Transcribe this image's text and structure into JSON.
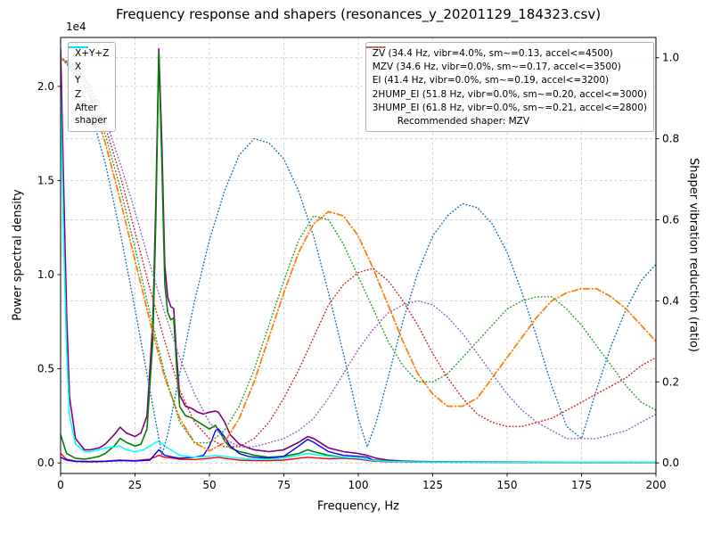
{
  "chart_data": {
    "type": "line",
    "title": "Frequency response and shapers (resonances_y_20201129_184323.csv)",
    "xlabel": "Frequency, Hz",
    "ylabel_left": "Power spectral density",
    "ylabel_right": "Shaper vibration reduction (ratio)",
    "left_offset_label": "1e4",
    "left_scale": 10000,
    "xlim": [
      0,
      200
    ],
    "left_lim": [
      -560,
      22600
    ],
    "right_lim": [
      -0.026,
      1.05
    ],
    "x_ticks": [
      0,
      25,
      50,
      75,
      100,
      125,
      150,
      175,
      200
    ],
    "left_ticks": [
      0,
      5000,
      10000,
      15000,
      20000
    ],
    "right_ticks": [
      0,
      0.2,
      0.4,
      0.6,
      0.8,
      1.0
    ],
    "grid": true,
    "legend_note": "Recommended shaper: MZV",
    "psd_series": [
      {
        "name": "x-y-z",
        "label": "X+Y+Z",
        "color": "#800080",
        "style": "solid",
        "width": 1.6,
        "x": [
          0,
          1,
          2,
          3,
          5,
          8,
          10,
          13,
          15,
          18,
          20,
          22,
          25,
          27,
          29,
          31,
          32,
          33,
          34,
          35,
          36,
          37,
          38,
          39,
          40,
          42,
          44,
          46,
          48,
          50,
          52,
          53,
          55,
          57,
          60,
          63,
          65,
          70,
          75,
          80,
          83,
          85,
          88,
          90,
          95,
          100,
          103,
          106,
          110,
          115,
          120,
          130,
          150,
          175,
          200
        ],
        "y": [
          22000,
          15000,
          8000,
          3500,
          1300,
          700,
          700,
          800,
          1000,
          1500,
          1900,
          1600,
          1400,
          1600,
          2500,
          7500,
          14000,
          22000,
          17000,
          10500,
          8800,
          8300,
          8200,
          5600,
          3600,
          3000,
          2900,
          2700,
          2600,
          2700,
          2750,
          2700,
          2200,
          1500,
          1000,
          800,
          700,
          600,
          700,
          1100,
          1400,
          1300,
          1000,
          800,
          600,
          500,
          400,
          250,
          150,
          100,
          80,
          60,
          50,
          40,
          40
        ]
      },
      {
        "name": "x",
        "label": "X",
        "color": "#ff0000",
        "style": "solid",
        "width": 1.4,
        "x": [
          0,
          2,
          5,
          10,
          15,
          20,
          25,
          30,
          33,
          35,
          38,
          40,
          45,
          50,
          53,
          55,
          60,
          65,
          70,
          75,
          80,
          83,
          85,
          90,
          95,
          100,
          105,
          110,
          120,
          150,
          200
        ],
        "y": [
          500,
          200,
          100,
          80,
          100,
          150,
          120,
          200,
          400,
          300,
          250,
          200,
          180,
          250,
          300,
          250,
          150,
          120,
          120,
          150,
          250,
          300,
          280,
          220,
          250,
          200,
          100,
          60,
          40,
          30,
          30
        ]
      },
      {
        "name": "y",
        "label": "Y",
        "color": "#008000",
        "style": "solid",
        "width": 1.6,
        "x": [
          0,
          2,
          5,
          8,
          10,
          13,
          15,
          18,
          20,
          22,
          25,
          27,
          29,
          31,
          32,
          33,
          34,
          35,
          36,
          37,
          38,
          39,
          40,
          42,
          44,
          46,
          48,
          50,
          52,
          54,
          55,
          57,
          60,
          63,
          65,
          70,
          75,
          80,
          83,
          85,
          90,
          95,
          100,
          105,
          110,
          120,
          130,
          150,
          175,
          200
        ],
        "y": [
          1500,
          500,
          250,
          200,
          250,
          350,
          500,
          900,
          1300,
          1100,
          900,
          1000,
          1800,
          6500,
          13000,
          21800,
          16000,
          9500,
          8000,
          7600,
          7700,
          5000,
          3000,
          2500,
          2400,
          2200,
          2000,
          1800,
          2000,
          1500,
          1200,
          800,
          600,
          500,
          400,
          300,
          350,
          500,
          700,
          600,
          400,
          300,
          250,
          150,
          100,
          60,
          50,
          40,
          30,
          30
        ]
      },
      {
        "name": "z",
        "label": "Z",
        "color": "#0000ff",
        "style": "solid",
        "width": 1.4,
        "x": [
          0,
          2,
          5,
          10,
          15,
          20,
          25,
          30,
          33,
          35,
          38,
          40,
          45,
          48,
          50,
          52,
          53,
          55,
          57,
          60,
          63,
          65,
          70,
          75,
          80,
          83,
          85,
          88,
          90,
          95,
          100,
          103,
          105,
          110,
          120,
          150,
          200
        ],
        "y": [
          300,
          150,
          80,
          60,
          80,
          120,
          100,
          150,
          700,
          400,
          300,
          250,
          300,
          400,
          900,
          1700,
          1800,
          1400,
          900,
          500,
          350,
          300,
          250,
          350,
          900,
          1250,
          1100,
          800,
          600,
          400,
          350,
          300,
          150,
          80,
          50,
          40,
          40
        ]
      },
      {
        "name": "after-shaper",
        "label": "After\nshaper",
        "color": "#00ffff",
        "style": "solid",
        "width": 1.5,
        "x": [
          0,
          1,
          2,
          3,
          5,
          8,
          10,
          13,
          15,
          18,
          20,
          22,
          25,
          28,
          30,
          32,
          33,
          35,
          38,
          40,
          45,
          50,
          52,
          55,
          60,
          65,
          70,
          75,
          80,
          83,
          85,
          90,
          95,
          100,
          105,
          110,
          120,
          150,
          200
        ],
        "y": [
          19800,
          12000,
          6000,
          2500,
          1000,
          600,
          600,
          700,
          800,
          850,
          900,
          700,
          600,
          700,
          900,
          1100,
          1150,
          900,
          600,
          400,
          300,
          350,
          400,
          350,
          250,
          200,
          200,
          250,
          400,
          500,
          450,
          350,
          300,
          250,
          130,
          80,
          50,
          40,
          40
        ]
      }
    ],
    "shaper_series": [
      {
        "name": "zv",
        "label": "ZV (34.4 Hz, vibr=4.0%, sm~=0.13, accel<=4500)",
        "color": "#1f77b4",
        "style": "dotted",
        "width": 1.5,
        "x": [
          0,
          5,
          10,
          15,
          20,
          25,
          30,
          34,
          36,
          40,
          45,
          50,
          55,
          60,
          65,
          70,
          75,
          80,
          85,
          90,
          95,
          100,
          103,
          106,
          110,
          115,
          120,
          125,
          130,
          135,
          140,
          145,
          150,
          155,
          160,
          165,
          170,
          175,
          180,
          185,
          190,
          195,
          200
        ],
        "y": [
          1.0,
          0.96,
          0.87,
          0.74,
          0.57,
          0.38,
          0.18,
          0.02,
          0.07,
          0.22,
          0.4,
          0.55,
          0.67,
          0.76,
          0.8,
          0.79,
          0.75,
          0.67,
          0.56,
          0.42,
          0.27,
          0.11,
          0.04,
          0.1,
          0.21,
          0.35,
          0.47,
          0.56,
          0.61,
          0.64,
          0.63,
          0.59,
          0.52,
          0.42,
          0.31,
          0.19,
          0.09,
          0.06,
          0.18,
          0.29,
          0.38,
          0.45,
          0.49
        ]
      },
      {
        "name": "mzv",
        "label": "MZV (34.6 Hz, vibr=0.0%, sm~=0.17, accel<=3500)",
        "color": "#ff7f0e",
        "style": "dashdot",
        "width": 1.8,
        "x": [
          0,
          5,
          10,
          15,
          20,
          25,
          30,
          35,
          40,
          45,
          50,
          55,
          60,
          65,
          70,
          75,
          80,
          85,
          90,
          95,
          100,
          105,
          110,
          115,
          120,
          125,
          130,
          135,
          140,
          145,
          150,
          155,
          160,
          165,
          170,
          175,
          180,
          185,
          190,
          195,
          200
        ],
        "y": [
          1.0,
          0.97,
          0.9,
          0.79,
          0.65,
          0.5,
          0.35,
          0.21,
          0.11,
          0.05,
          0.03,
          0.05,
          0.11,
          0.2,
          0.31,
          0.42,
          0.52,
          0.59,
          0.62,
          0.61,
          0.56,
          0.48,
          0.39,
          0.3,
          0.22,
          0.17,
          0.14,
          0.14,
          0.16,
          0.21,
          0.26,
          0.31,
          0.36,
          0.4,
          0.42,
          0.43,
          0.43,
          0.41,
          0.38,
          0.34,
          0.3
        ]
      },
      {
        "name": "ei",
        "label": "EI (41.4 Hz, vibr=0.0%, sm~=0.19, accel<=3200)",
        "color": "#2ca02c",
        "style": "dotted",
        "width": 1.5,
        "x": [
          0,
          5,
          10,
          15,
          20,
          25,
          30,
          35,
          40,
          45,
          50,
          55,
          60,
          65,
          70,
          75,
          80,
          85,
          90,
          95,
          100,
          105,
          110,
          115,
          120,
          125,
          130,
          135,
          140,
          145,
          150,
          155,
          160,
          165,
          170,
          175,
          180,
          185,
          190,
          195,
          200
        ],
        "y": [
          1.0,
          0.97,
          0.91,
          0.81,
          0.68,
          0.53,
          0.37,
          0.22,
          0.1,
          0.05,
          0.05,
          0.08,
          0.14,
          0.23,
          0.34,
          0.45,
          0.55,
          0.61,
          0.6,
          0.54,
          0.46,
          0.38,
          0.3,
          0.24,
          0.2,
          0.2,
          0.22,
          0.26,
          0.3,
          0.34,
          0.38,
          0.4,
          0.41,
          0.41,
          0.38,
          0.34,
          0.29,
          0.24,
          0.19,
          0.15,
          0.13
        ]
      },
      {
        "name": "2hump-ei",
        "label": "2HUMP_EI (51.8 Hz, vibr=0.0%, sm~=0.20, accel<=3000)",
        "color": "#d62728",
        "style": "dotted",
        "width": 1.5,
        "x": [
          0,
          5,
          10,
          15,
          20,
          25,
          30,
          35,
          40,
          45,
          50,
          55,
          60,
          65,
          70,
          75,
          80,
          85,
          90,
          95,
          100,
          105,
          110,
          115,
          120,
          125,
          130,
          135,
          140,
          145,
          150,
          155,
          160,
          165,
          170,
          175,
          180,
          185,
          190,
          195,
          200
        ],
        "y": [
          1.0,
          0.98,
          0.92,
          0.83,
          0.71,
          0.57,
          0.43,
          0.3,
          0.18,
          0.1,
          0.06,
          0.04,
          0.04,
          0.06,
          0.1,
          0.16,
          0.23,
          0.31,
          0.39,
          0.44,
          0.47,
          0.48,
          0.45,
          0.4,
          0.34,
          0.27,
          0.21,
          0.16,
          0.12,
          0.1,
          0.09,
          0.09,
          0.1,
          0.11,
          0.13,
          0.15,
          0.17,
          0.19,
          0.21,
          0.24,
          0.26
        ]
      },
      {
        "name": "3hump-ei",
        "label": "3HUMP_EI (61.8 Hz, vibr=0.0%, sm~=0.21, accel<=2800)",
        "color": "#9467bd",
        "style": "dotted",
        "width": 1.5,
        "x": [
          0,
          5,
          10,
          15,
          20,
          25,
          30,
          35,
          40,
          45,
          50,
          55,
          60,
          65,
          70,
          75,
          80,
          85,
          90,
          95,
          100,
          105,
          110,
          115,
          120,
          125,
          130,
          135,
          140,
          145,
          150,
          155,
          160,
          165,
          170,
          175,
          180,
          185,
          190,
          195,
          200
        ],
        "y": [
          1.0,
          0.98,
          0.93,
          0.85,
          0.74,
          0.62,
          0.49,
          0.37,
          0.26,
          0.17,
          0.1,
          0.06,
          0.04,
          0.04,
          0.05,
          0.06,
          0.08,
          0.11,
          0.16,
          0.22,
          0.28,
          0.33,
          0.37,
          0.39,
          0.4,
          0.39,
          0.36,
          0.32,
          0.27,
          0.22,
          0.17,
          0.13,
          0.1,
          0.08,
          0.06,
          0.06,
          0.06,
          0.07,
          0.08,
          0.1,
          0.12
        ]
      }
    ]
  }
}
